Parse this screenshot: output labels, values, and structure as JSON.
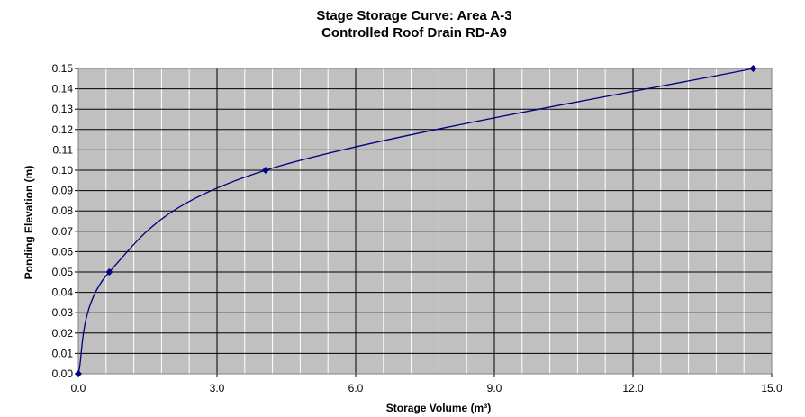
{
  "chart_data": {
    "type": "line",
    "title": [
      "Stage Storage Curve: Area A-3",
      "Controlled Roof Drain RD-A9"
    ],
    "xlabel": "Storage Volume (m³)",
    "ylabel": "Ponding Elevation (m)",
    "xlim": [
      0,
      15
    ],
    "ylim": [
      0,
      0.15
    ],
    "x_ticks": [
      "0.0",
      "3.0",
      "6.0",
      "9.0",
      "12.0",
      "15.0"
    ],
    "y_ticks": [
      "0.00",
      "0.01",
      "0.02",
      "0.03",
      "0.04",
      "0.05",
      "0.06",
      "0.07",
      "0.08",
      "0.09",
      "0.10",
      "0.11",
      "0.12",
      "0.13",
      "0.14",
      "0.15"
    ],
    "grid": "major-black, minor-white",
    "background": "#c0c0c0",
    "series": [
      {
        "color": "#000080",
        "smooth": true,
        "marker": "diamond",
        "points": [
          {
            "x": 0.0,
            "y": 0.0
          },
          {
            "x": 0.67,
            "y": 0.05
          },
          {
            "x": 4.05,
            "y": 0.1
          },
          {
            "x": 14.6,
            "y": 0.15
          }
        ]
      }
    ]
  }
}
